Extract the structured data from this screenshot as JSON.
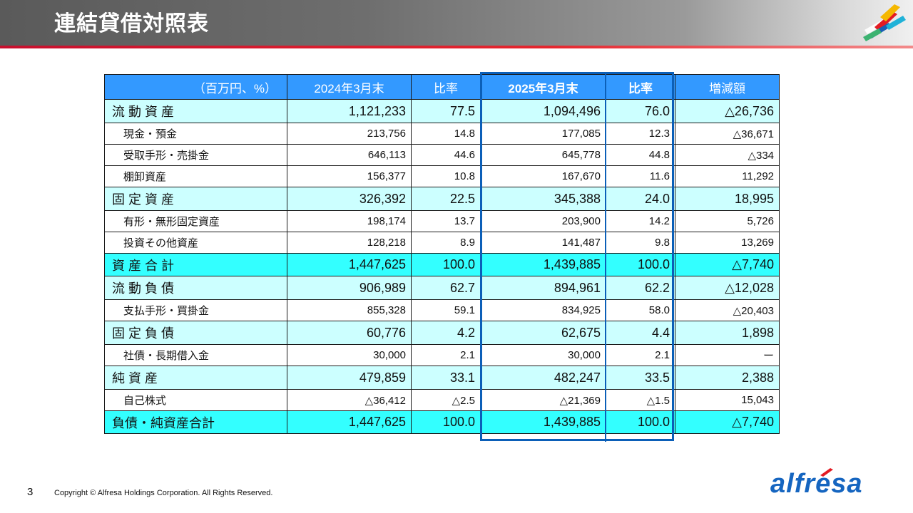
{
  "header": {
    "title": "連結貸借対照表"
  },
  "table": {
    "unit_label": "（百万円、%）",
    "columns": [
      "2024年3月末",
      "比率",
      "2025年3月末",
      "比率",
      "増減額"
    ],
    "rows": [
      {
        "type": "major",
        "label": "流 動 資 産",
        "v1": "1,121,233",
        "r1": "77.5",
        "v2": "1,094,496",
        "r2": "76.0",
        "diff": "△26,736"
      },
      {
        "type": "minor",
        "label": "現金・預金",
        "v1": "213,756",
        "r1": "14.8",
        "v2": "177,085",
        "r2": "12.3",
        "diff": "△36,671"
      },
      {
        "type": "minor",
        "label": "受取手形・売掛金",
        "v1": "646,113",
        "r1": "44.6",
        "v2": "645,778",
        "r2": "44.8",
        "diff": "△334"
      },
      {
        "type": "minor",
        "label": "棚卸資産",
        "v1": "156,377",
        "r1": "10.8",
        "v2": "167,670",
        "r2": "11.6",
        "diff": "11,292"
      },
      {
        "type": "major",
        "label": "固 定 資 産",
        "v1": "326,392",
        "r1": "22.5",
        "v2": "345,388",
        "r2": "24.0",
        "diff": "18,995"
      },
      {
        "type": "minor",
        "label": "有形・無形固定資産",
        "v1": "198,174",
        "r1": "13.7",
        "v2": "203,900",
        "r2": "14.2",
        "diff": "5,726"
      },
      {
        "type": "minor",
        "label": "投資その他資産",
        "v1": "128,218",
        "r1": "8.9",
        "v2": "141,487",
        "r2": "9.8",
        "diff": "13,269"
      },
      {
        "type": "total",
        "label": "資 産 合 計",
        "v1": "1,447,625",
        "r1": "100.0",
        "v2": "1,439,885",
        "r2": "100.0",
        "diff": "△7,740"
      },
      {
        "type": "major",
        "label": "流 動 負 債",
        "v1": "906,989",
        "r1": "62.7",
        "v2": "894,961",
        "r2": "62.2",
        "diff": "△12,028"
      },
      {
        "type": "minor",
        "label": "支払手形・買掛金",
        "v1": "855,328",
        "r1": "59.1",
        "v2": "834,925",
        "r2": "58.0",
        "diff": "△20,403"
      },
      {
        "type": "major",
        "label": "固 定 負 債",
        "v1": "60,776",
        "r1": "4.2",
        "v2": "62,675",
        "r2": "4.4",
        "diff": "1,898"
      },
      {
        "type": "minor",
        "label": "社債・長期借入金",
        "v1": "30,000",
        "r1": "2.1",
        "v2": "30,000",
        "r2": "2.1",
        "diff": "ー"
      },
      {
        "type": "major",
        "label": "純 資 産",
        "v1": "479,859",
        "r1": "33.1",
        "v2": "482,247",
        "r2": "33.5",
        "diff": "2,388"
      },
      {
        "type": "minor",
        "label": "自己株式",
        "v1": "△36,412",
        "r1": "△2.5",
        "v2": "△21,369",
        "r2": "△1.5",
        "diff": "15,043"
      },
      {
        "type": "total",
        "label": "負債・純資産合計",
        "v1": "1,447,625",
        "r1": "100.0",
        "v2": "1,439,885",
        "r2": "100.0",
        "diff": "△7,740"
      }
    ]
  },
  "footer": {
    "page_number": "3",
    "copyright": "Copyright © Alfresa Holdings Corporation. All Rights Reserved.",
    "brand": "alfresa"
  },
  "colors": {
    "header_fill": "#3399ff",
    "major_row_fill": "#ccffff",
    "total_row_fill": "#33ffff",
    "highlight_border": "#0b5fb8",
    "brand": "#1565c0",
    "accent_line": "#e5262e"
  },
  "icons": [
    "logo-mark-icon",
    "brand-mark-icon"
  ]
}
